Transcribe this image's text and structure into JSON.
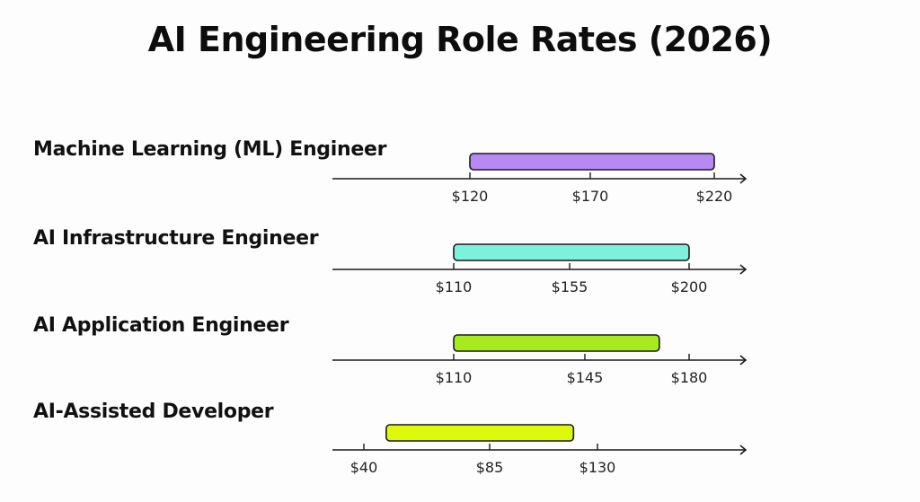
{
  "chart_data": {
    "type": "range-bar",
    "title": "AI Engineering Role Rates (2026)",
    "xlabel": "",
    "ylabel": "",
    "grid": false,
    "legend": "none",
    "units": "USD",
    "rows": [
      {
        "label": "Machine Learning (ML) Engineer",
        "ticks": [
          120,
          170,
          220
        ],
        "tick_labels": [
          "$120",
          "$170",
          "$220"
        ],
        "range": [
          120,
          220
        ],
        "color": "#b889f5"
      },
      {
        "label": "AI Infrastructure Engineer",
        "ticks": [
          110,
          155,
          200
        ],
        "tick_labels": [
          "$110",
          "$155",
          "$200"
        ],
        "range": [
          110,
          200
        ],
        "color": "#7ef1dc"
      },
      {
        "label": "AI Application Engineer",
        "ticks": [
          110,
          145,
          180
        ],
        "tick_labels": [
          "$110",
          "$145",
          "$180"
        ],
        "range": [
          110,
          170
        ],
        "color": "#a6ec1c"
      },
      {
        "label": "AI-Assisted Developer",
        "ticks": [
          40,
          85,
          130
        ],
        "tick_labels": [
          "$40",
          "$85",
          "$130"
        ],
        "range": [
          48,
          120
        ],
        "color": "#dcfa0a"
      }
    ]
  }
}
